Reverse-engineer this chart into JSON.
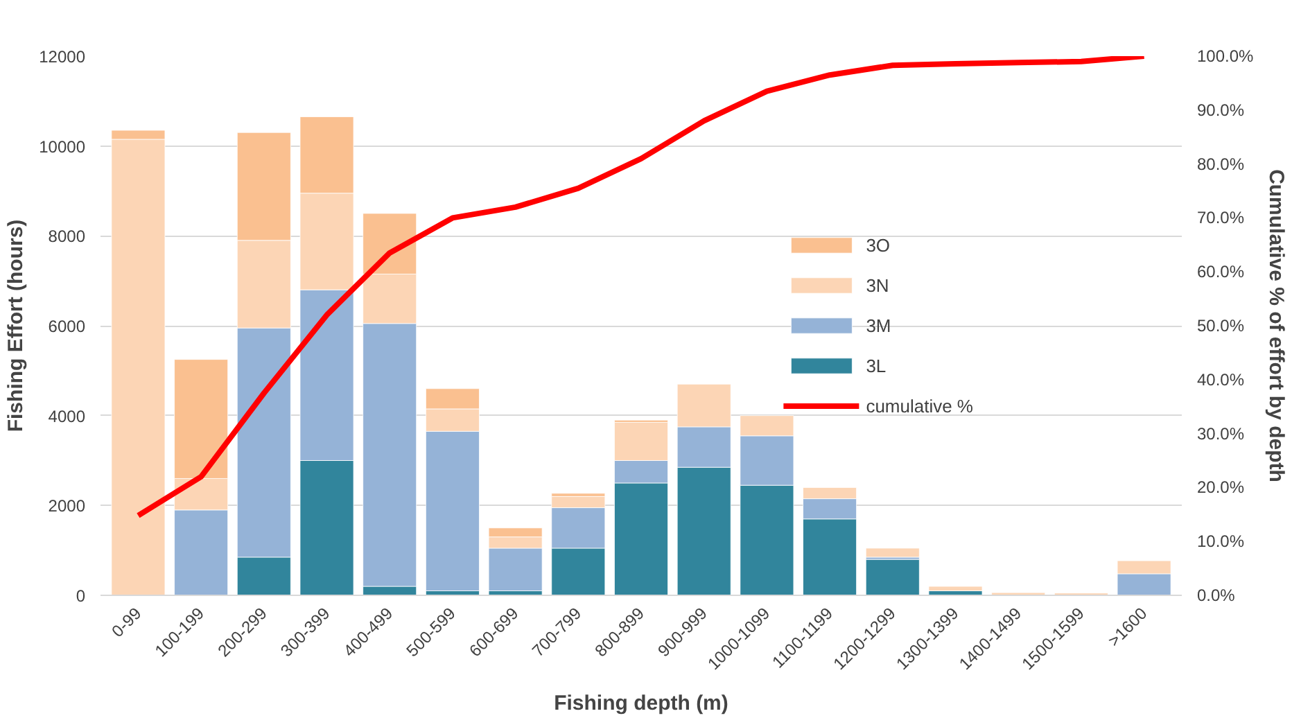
{
  "chart_data": {
    "type": "bar",
    "stacked": true,
    "xlabel": "Fishing depth (m)",
    "ylabel": "Fishing Effort (hours)",
    "y2label": "Cumulative % of effort by depth",
    "categories": [
      "0-99",
      "100-199",
      "200-299",
      "300-399",
      "400-499",
      "500-599",
      "600-699",
      "700-799",
      "800-899",
      "900-999",
      "1000-1099",
      "1100-1199",
      "1200-1299",
      "1300-1399",
      "1400-1499",
      "1500-1599",
      ">1600"
    ],
    "series": [
      {
        "name": "3L",
        "color": "#31859c",
        "values": [
          0,
          0,
          850,
          3000,
          200,
          100,
          100,
          1050,
          2500,
          2850,
          2450,
          1700,
          800,
          100,
          0,
          0,
          0
        ]
      },
      {
        "name": "3M",
        "color": "#95b3d7",
        "values": [
          0,
          1900,
          5100,
          3800,
          5850,
          3550,
          950,
          900,
          500,
          900,
          1100,
          450,
          50,
          0,
          0,
          0,
          480
        ]
      },
      {
        "name": "3N",
        "color": "#fcd5b5",
        "values": [
          10150,
          700,
          1950,
          2150,
          1100,
          500,
          250,
          250,
          850,
          950,
          450,
          250,
          200,
          100,
          60,
          50,
          290
        ]
      },
      {
        "name": "3O",
        "color": "#fac090",
        "values": [
          200,
          2650,
          2400,
          1700,
          1350,
          450,
          200,
          70,
          50,
          0,
          0,
          0,
          0,
          0,
          0,
          0,
          0
        ]
      },
      {
        "name": "cumulative %",
        "type": "line",
        "axis": "y2",
        "color": "#ff0000",
        "values": [
          14.8,
          22,
          37.5,
          52,
          63.5,
          70,
          72,
          75.5,
          81,
          88,
          93.5,
          96.5,
          98.3,
          98.6,
          98.8,
          99,
          100
        ]
      }
    ],
    "ylim": [
      0,
      12000
    ],
    "yticks": [
      0,
      2000,
      4000,
      6000,
      8000,
      10000,
      12000
    ],
    "y2lim": [
      0,
      100
    ],
    "y2ticks": [
      {
        "value": 0,
        "label": "0.0%"
      },
      {
        "value": 10,
        "label": "10.0%"
      },
      {
        "value": 20,
        "label": "20.0%"
      },
      {
        "value": 30,
        "label": "30.0%"
      },
      {
        "value": 40,
        "label": "40.0%"
      },
      {
        "value": 50,
        "label": "50.0%"
      },
      {
        "value": 60,
        "label": "60.0%"
      },
      {
        "value": 70,
        "label": "70.0%"
      },
      {
        "value": 80,
        "label": "80.0%"
      },
      {
        "value": 90,
        "label": "90.0%"
      },
      {
        "value": 100,
        "label": "100.0%"
      }
    ],
    "grid": "y",
    "legend": "right",
    "marker": "none",
    "line_style": "solid"
  }
}
